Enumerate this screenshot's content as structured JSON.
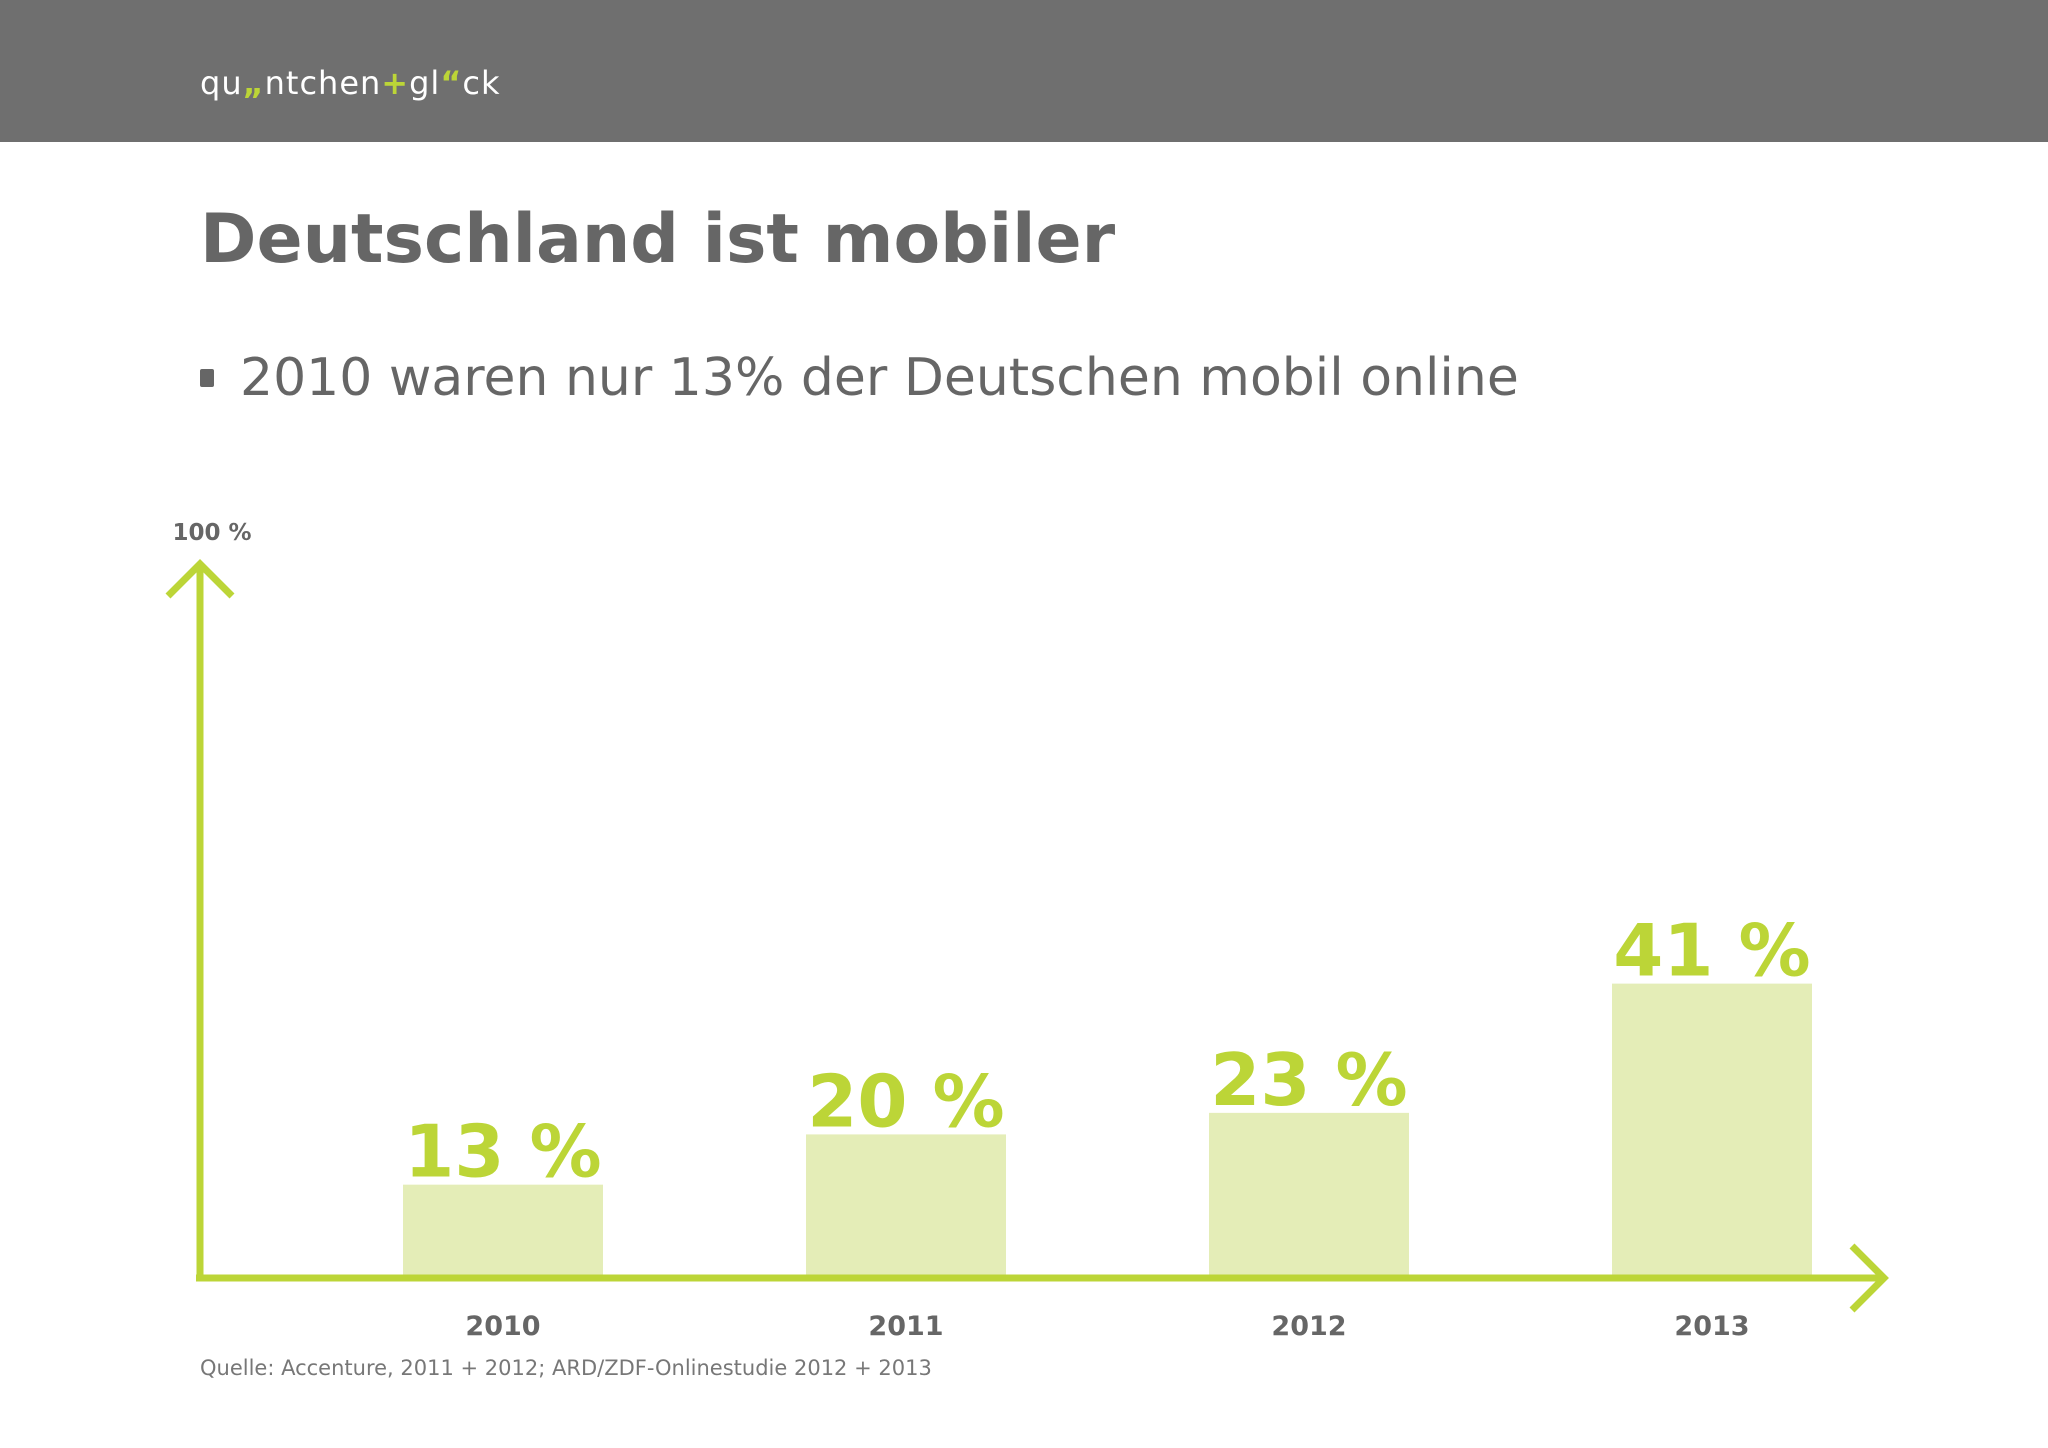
{
  "header": {
    "logo_parts": [
      "qu",
      "„",
      "ntchen",
      "+",
      "gl",
      "“",
      "ck"
    ]
  },
  "slide": {
    "title": "Deutschland ist mobiler",
    "bullet": "2010 waren nur 13% der Deutschen mobil online",
    "source": "Quelle: Accenture, 2011 + 2012; ARD/ZDF-Onlinestudie 2012 + 2013"
  },
  "colors": {
    "header_bg": "#6f6f6f",
    "accent": "#bcd537",
    "bar_fill": "#e4edb7",
    "text": "#666666"
  },
  "chart_data": {
    "type": "bar",
    "categories": [
      "2010",
      "2011",
      "2012",
      "2013"
    ],
    "values": [
      13,
      20,
      23,
      41
    ],
    "value_labels": [
      "13 %",
      "20 %",
      "23 %",
      "41 %"
    ],
    "ylim": [
      0,
      100
    ],
    "y_axis_top_label": "100 %",
    "title": "",
    "xlabel": "",
    "ylabel": "",
    "grid": false,
    "legend": "none"
  }
}
